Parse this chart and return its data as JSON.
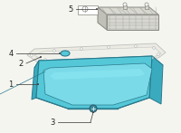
{
  "bg_color": "#f5f5f0",
  "pan_fill": "#55c8d8",
  "pan_edge": "#2a7a8c",
  "pan_inner_fill": "#7adae8",
  "pan_inner_edge": "#2a7a8c",
  "pan_side_fill": "#3aabbf",
  "pan_rim_fill": "#48b8cc",
  "gasket_fill": "#e8e8e0",
  "gasket_edge": "#aaaaaa",
  "gasket_line": "#bbbbbb",
  "filter_top_fill": "#d8d8d0",
  "filter_top_edge": "#888880",
  "filter_side_fill": "#c0c0b8",
  "filter_side_edge": "#888880",
  "filter_grid": "#aaaaaa",
  "plug_fill": "#55c8d8",
  "plug_edge": "#2a7a8c",
  "drain_fill": "#3a8899",
  "drain_edge": "#2a6070",
  "line_color": "#444444",
  "label_color": "#222222",
  "label_fontsize": 6.0,
  "figsize": [
    2.0,
    1.47
  ],
  "dpi": 100
}
